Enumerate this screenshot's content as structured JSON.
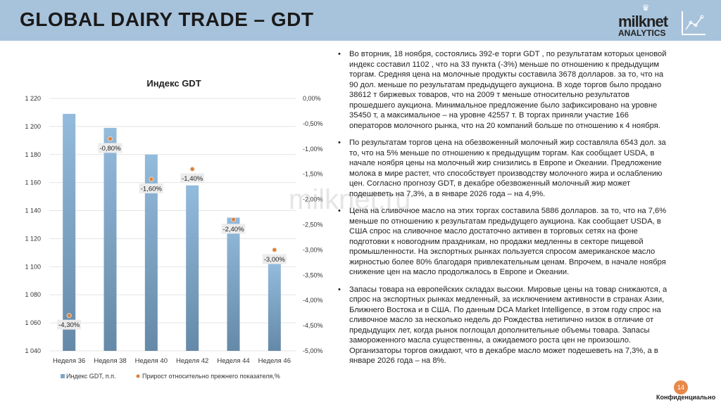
{
  "header": {
    "title": "GLOBAL DAIRY TRADE – GDT",
    "logo_line1": "milknet",
    "logo_line2": "ANALYTICS"
  },
  "chart_data": {
    "type": "bar",
    "title": "Индекс GDT",
    "categories": [
      "Неделя 36",
      "Неделя 38",
      "Неделя 40",
      "Неделя 42",
      "Неделя 44",
      "Неделя 46"
    ],
    "series": [
      {
        "name": "Индекс GDT, п.п.",
        "type": "bar",
        "axis": "left",
        "values": [
          1209,
          1199,
          1180,
          1158,
          1135,
          1102
        ],
        "color": "#7fa7c9"
      },
      {
        "name": "Прирост относительно прежнего показателя,%",
        "type": "scatter",
        "axis": "right",
        "values": [
          -4.3,
          -0.8,
          -1.6,
          -1.4,
          -2.4,
          -3.0
        ],
        "labels": [
          "-4,30%",
          "-0,80%",
          "-1,60%",
          "-1,40%",
          "-2,40%",
          "-3,00%"
        ],
        "color": "#d9803a"
      }
    ],
    "left_axis": {
      "ylim": [
        1040,
        1220
      ],
      "ticks": [
        "1 040",
        "1 060",
        "1 080",
        "1 100",
        "1 120",
        "1 140",
        "1 160",
        "1 180",
        "1 200",
        "1 220"
      ]
    },
    "right_axis": {
      "ylim": [
        -5,
        0
      ],
      "ticks": [
        "-5,00%",
        "-4,50%",
        "-4,00%",
        "-3,50%",
        "-3,00%",
        "-2,50%",
        "-2,00%",
        "-1,50%",
        "-1,00%",
        "-0,50%",
        "0,00%"
      ]
    },
    "grid": true,
    "legend": "bottom"
  },
  "text": {
    "paragraphs": [
      "Во вторник, 18 ноября, состоялись 392-е торги GDT , по результатам которых ценовой индекс составил 1102 , что на 33 пункта (-3%) меньше по отношению к предыдущим торгам. Средняя цена на молочные продукты составила 3678 долларов. за то, что на 90 дол. меньше по результатам предыдущего аукциона. В ходе торгов было продано 38612 т биржевых товаров, что на 2009 т меньше относительно результатов прошедшего аукциона. Минимальное предложение было зафиксировано на уровне 35450 т, а максимальное – на уровне 42557 т. В торгах приняли участие 166 операторов молочного рынка, что на 20 компаний больше по отношению к 4 ноября.",
      "По результатам торгов цена на обезвоженный молочный жир составляла 6543 дол. за то, что на 5% меньше по отношению к предыдущим торгам. Как сообщает USDA, в начале ноября цены на молочный жир снизились в Европе и Океании. Предложение молока в мире растет, что способствует производству молочного жира и ослаблению цен. Согласно прогнозу GDT, в декабре обезвоженный молочный жир может подешеветь на 7,3%, а в январе 2026 года – на 4,9%.",
      "Цена на сливочное масло на этих торгах составила 5886 долларов. за то, что на 7,6% меньше по отношению к результатам предыдущего аукциона. Как сообщает USDA, в США спрос на сливочное масло достаточно активен в торговых сетях на фоне подготовки к новогодним праздникам, но продажи медленны в секторе пищевой промышленности. На экспортных рынках пользуется спросом американское масло жирностью более 80% благодаря привлекательным ценам. Впрочем, в начале ноября снижение цен на масло продолжалось в Европе и Океании.",
      "Запасы товара на европейских складах высоки. Мировые цены на товар снижаются, а спрос на экспортных рынках медленный, за исключением активности в странах Азии, Ближнего Востока и в США. По данным DCA Market Intelligence, в этом году спрос на сливочное масло за несколько недель до Рождества нетипично низок в отличие от предыдущих лет, когда рынок поглощал дополнительные объемы товара. Запасы замороженного масла существенны, а ожидаемого роста цен не произошло. Организаторы торгов ожидают, что в декабре масло может подешеветь на 7,3%, а в январе 2026 года – на 8%."
    ]
  },
  "watermark": "milknet.ru",
  "footer": {
    "page": "14",
    "confidential": "Конфиденциально"
  }
}
